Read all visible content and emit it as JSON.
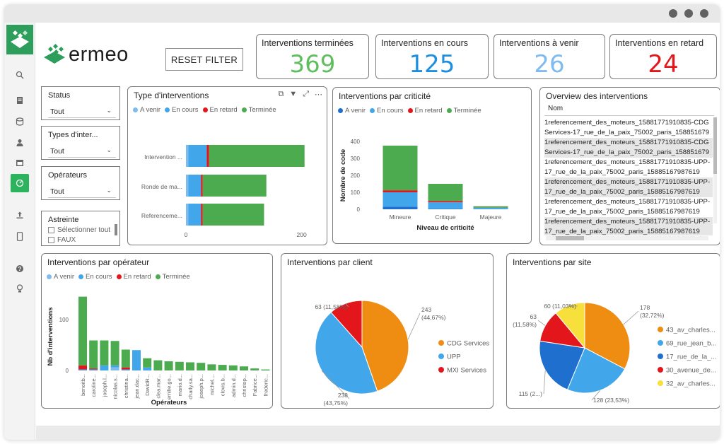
{
  "brand": {
    "name": "ermeo",
    "color": "#2e9e5c"
  },
  "colors": {
    "a_venir": "#7fbbef",
    "en_cours": "#41a7ea",
    "en_retard": "#e3161b",
    "terminee": "#4caa4f",
    "orange": "#ef8c12",
    "blue_dark": "#1f6fcf",
    "yellow": "#f7e03c"
  },
  "toolbar": {
    "reset_label": "RESET FILTER"
  },
  "nav": {
    "icons": [
      "search-icon",
      "page-icon",
      "database-icon",
      "user-icon",
      "calendar-icon",
      "dashboard-icon",
      "upload-icon",
      "mobile-icon",
      "help-icon",
      "lightbulb-icon"
    ]
  },
  "kpis": [
    {
      "label": "Interventions terminées",
      "value": "369",
      "color": "#5fbf5f"
    },
    {
      "label": "Interventions en cours",
      "value": "125",
      "color": "#1e8fe0"
    },
    {
      "label": "Interventions à venir",
      "value": "26",
      "color": "#7fbbef"
    },
    {
      "label": "Interventions en retard",
      "value": "24",
      "color": "#e3161b"
    }
  ],
  "slicers": [
    {
      "title": "Status",
      "value": "Tout"
    },
    {
      "title": "Types d'inter...",
      "value": "Tout"
    },
    {
      "title": "Opérateurs",
      "value": "Tout"
    },
    {
      "title": "Astreinte",
      "options": [
        "Sélectionner tout",
        "FAUX"
      ]
    }
  ],
  "legend_labels": [
    "A venir",
    "En cours",
    "En retard",
    "Terminée"
  ],
  "chart_data": [
    {
      "type": "bar",
      "orientation": "horizontal-stacked",
      "title": "Type d'interventions",
      "categories": [
        "Intervention ...",
        "Ronde de ma...",
        "Referenceme..."
      ],
      "series": [
        {
          "name": "A venir",
          "values": [
            4,
            4,
            4
          ]
        },
        {
          "name": "En cours",
          "values": [
            32,
            22,
            22
          ]
        },
        {
          "name": "En retard",
          "values": [
            4,
            3,
            3
          ]
        },
        {
          "name": "Terminée",
          "values": [
            165,
            110,
            106
          ]
        }
      ],
      "xlim": [
        0,
        220
      ],
      "xticks": [
        "0",
        "200"
      ]
    },
    {
      "type": "bar",
      "orientation": "vertical-stacked",
      "title": "Interventions par criticité",
      "categories": [
        "Mineure",
        "Critique",
        "Majeure"
      ],
      "series": [
        {
          "name": "A venir",
          "values": [
            15,
            3,
            1
          ]
        },
        {
          "name": "En cours",
          "values": [
            85,
            38,
            8
          ]
        },
        {
          "name": "En retard",
          "values": [
            12,
            8,
            1
          ]
        },
        {
          "name": "Terminée",
          "values": [
            263,
            101,
            8
          ]
        }
      ],
      "xlabel": "Niveau de criticité",
      "ylabel": "Nombre de code",
      "ylim": [
        0,
        400
      ],
      "yticks": [
        "0",
        "100",
        "200",
        "300",
        "400"
      ]
    },
    {
      "type": "bar",
      "orientation": "vertical-stacked",
      "title": "Interventions par opérateur",
      "categories": [
        "benoitb...",
        "caroline...",
        "joseph.l...",
        "nicolas.s...",
        "christina...",
        "jean.dac...",
        "DavidR...",
        "clea.mar...",
        "emilie.go...",
        "mario.d...",
        "charly.sa...",
        "joseph.p...",
        "michel....",
        "clovis.b...",
        "admin.d...",
        "christop...",
        "Fabrice...",
        "frederic..."
      ],
      "series": [
        {
          "name": "A venir",
          "values": [
            0,
            0,
            0,
            6,
            0,
            0,
            0,
            0,
            0,
            0,
            0,
            0,
            0,
            0,
            0,
            0,
            0,
            0
          ]
        },
        {
          "name": "En cours",
          "values": [
            2,
            2,
            10,
            4,
            2,
            40,
            6,
            0,
            0,
            0,
            0,
            0,
            0,
            0,
            0,
            0,
            0,
            0
          ]
        },
        {
          "name": "En retard",
          "values": [
            8,
            2,
            0,
            0,
            4,
            0,
            0,
            0,
            0,
            0,
            0,
            0,
            0,
            0,
            0,
            0,
            0,
            0
          ]
        },
        {
          "name": "Terminée",
          "values": [
            135,
            55,
            49,
            48,
            35,
            0,
            18,
            20,
            18,
            17,
            16,
            15,
            12,
            11,
            10,
            8,
            4,
            2
          ]
        }
      ],
      "xlabel": "Opérateurs",
      "ylabel": "Nb d'interventions",
      "ylim": [
        0,
        150
      ],
      "yticks": [
        "0",
        "100"
      ]
    },
    {
      "type": "pie",
      "title": "Interventions par client",
      "slices": [
        {
          "label": "CDG Services",
          "value": 243,
          "text": "243",
          "pct": "(44,67%)",
          "color": "#ef8c12"
        },
        {
          "label": "UPP",
          "value": 238,
          "text": "238",
          "pct": "(43,75%)",
          "color": "#41a7ea"
        },
        {
          "label": "MXI Services",
          "value": 63,
          "text": "63 (11,58%)",
          "pct": "",
          "color": "#e3161b"
        }
      ]
    },
    {
      "type": "pie",
      "title": "Interventions par site",
      "slices": [
        {
          "label": "43_av_charles...",
          "value": 178,
          "text": "178",
          "pct": "(32,72%)",
          "color": "#ef8c12"
        },
        {
          "label": "69_rue_jean_b...",
          "value": 128,
          "text": "128 (23,53%)",
          "pct": "",
          "color": "#41a7ea"
        },
        {
          "label": "17_rue_de_la_...",
          "value": 115,
          "text": "115 (2...)",
          "pct": "",
          "color": "#1f6fcf"
        },
        {
          "label": "30_avenue_de...",
          "value": 63,
          "text": "63",
          "pct": "(11,58%)",
          "color": "#e3161b"
        },
        {
          "label": "32_av_charles...",
          "value": 60,
          "text": "60 (11,03%)",
          "pct": "",
          "color": "#f7e03c"
        }
      ]
    }
  ],
  "table": {
    "title": "Overview des interventions",
    "column": "Nom",
    "rows": [
      "1referencement_des_moteurs_15881771910835-CDG Services-17_rue_de_la_paix_75002_paris_1588516798",
      "1referencement_des_moteurs_15881771910835-CDG Services-17_rue_de_la_paix_75002_paris_1588516798",
      "1referencement_des_moteurs_15881771910835-UPP-17_rue_de_la_paix_75002_paris_15885167987619",
      "1referencement_des_moteurs_15881771910835-UPP-17_rue_de_la_paix_75002_paris_15885167987619",
      "1referencement_des_moteurs_15881771910835-UPP-17_rue_de_la_paix_75002_paris_15885167987619",
      "1referencement_des_moteurs_15881771910835-UPP-17_rue_de_la_paix_75002_paris_15885167987619"
    ]
  }
}
